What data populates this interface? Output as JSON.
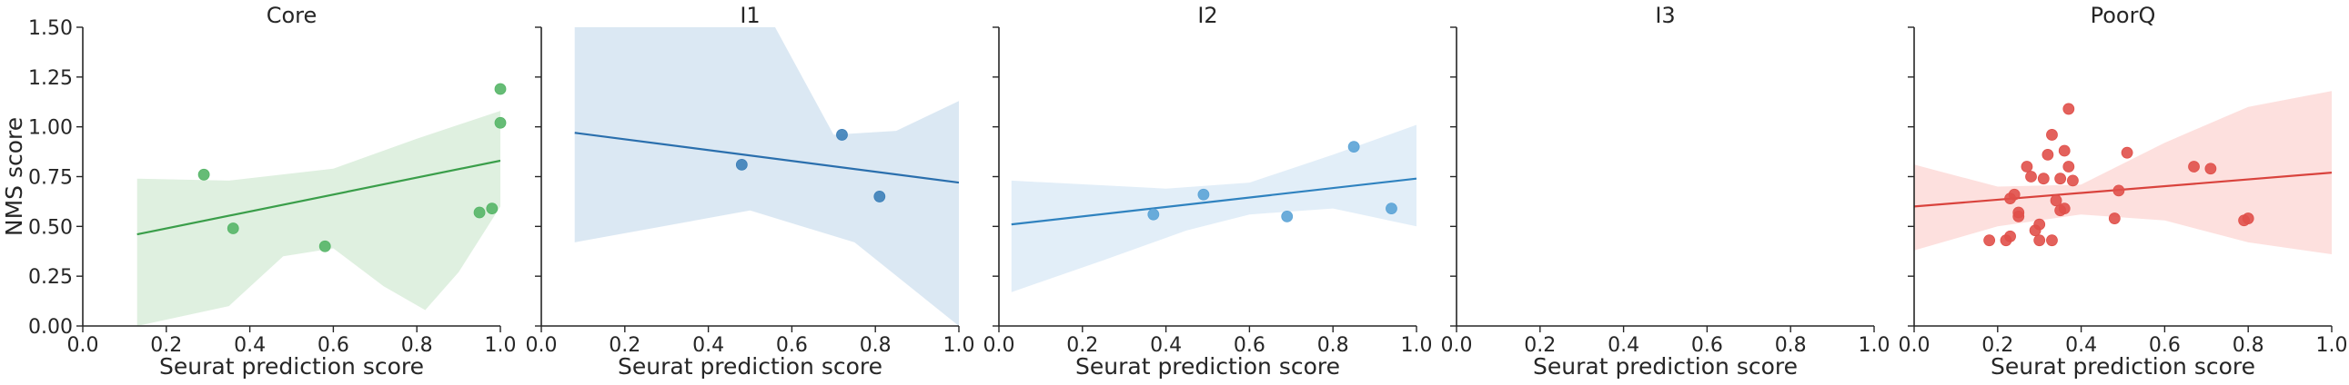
{
  "chart_data": [
    {
      "type": "scatter",
      "title": "Core",
      "xlabel": "Seurat prediction score",
      "ylabel": "NMS score",
      "xlim": [
        0.0,
        1.0
      ],
      "ylim": [
        0.0,
        1.5
      ],
      "xticks": [
        "0.0",
        "0.2",
        "0.4",
        "0.6",
        "0.8",
        "1.0"
      ],
      "yticks": [
        "0.00",
        "0.25",
        "0.50",
        "0.75",
        "1.00",
        "1.25",
        "1.50"
      ],
      "grid": false,
      "point_color": "#55b567",
      "line_color": "#3a9e4a",
      "band_color": "#dff0e0",
      "points": [
        [
          0.29,
          0.76
        ],
        [
          0.36,
          0.49
        ],
        [
          0.58,
          0.4
        ],
        [
          0.95,
          0.57
        ],
        [
          0.98,
          0.59
        ],
        [
          1.0,
          1.02
        ],
        [
          1.0,
          1.19
        ]
      ],
      "fit_line": [
        [
          0.13,
          0.46
        ],
        [
          1.0,
          0.83
        ]
      ],
      "ci_upper": [
        [
          0.13,
          0.74
        ],
        [
          0.35,
          0.73
        ],
        [
          0.6,
          0.79
        ],
        [
          0.8,
          0.94
        ],
        [
          1.0,
          1.08
        ]
      ],
      "ci_lower": [
        [
          0.13,
          0.0
        ],
        [
          0.35,
          0.1
        ],
        [
          0.48,
          0.35
        ],
        [
          0.6,
          0.39
        ],
        [
          0.72,
          0.2
        ],
        [
          0.82,
          0.08
        ],
        [
          0.9,
          0.27
        ],
        [
          1.0,
          0.6
        ]
      ]
    },
    {
      "type": "scatter",
      "title": "I1",
      "xlabel": "Seurat prediction score",
      "ylabel": "",
      "xlim": [
        0.0,
        1.0
      ],
      "ylim": [
        0.0,
        1.5
      ],
      "xticks": [
        "0.0",
        "0.2",
        "0.4",
        "0.6",
        "0.8",
        "1.0"
      ],
      "yticks": [],
      "grid": false,
      "point_color": "#3c7fb8",
      "line_color": "#2a6fad",
      "band_color": "#dbe8f3",
      "points": [
        [
          0.48,
          0.81
        ],
        [
          0.72,
          0.96
        ],
        [
          0.81,
          0.65
        ]
      ],
      "fit_line": [
        [
          0.08,
          0.97
        ],
        [
          1.0,
          0.72
        ]
      ],
      "ci_upper": [
        [
          0.08,
          1.5
        ],
        [
          0.56,
          1.5
        ],
        [
          0.7,
          0.96
        ],
        [
          0.85,
          0.98
        ],
        [
          1.0,
          1.13
        ]
      ],
      "ci_lower": [
        [
          0.08,
          0.42
        ],
        [
          0.5,
          0.58
        ],
        [
          0.75,
          0.42
        ],
        [
          1.0,
          0.0
        ]
      ]
    },
    {
      "type": "scatter",
      "title": "I2",
      "xlabel": "Seurat prediction score",
      "ylabel": "",
      "xlim": [
        0.0,
        1.0
      ],
      "ylim": [
        0.0,
        1.5
      ],
      "xticks": [
        "0.0",
        "0.2",
        "0.4",
        "0.6",
        "0.8",
        "1.0"
      ],
      "yticks": [],
      "grid": false,
      "point_color": "#5ba3d6",
      "line_color": "#2f82bf",
      "band_color": "#e2eef8",
      "points": [
        [
          0.37,
          0.56
        ],
        [
          0.49,
          0.66
        ],
        [
          0.69,
          0.55
        ],
        [
          0.85,
          0.9
        ],
        [
          0.94,
          0.59
        ]
      ],
      "fit_line": [
        [
          0.03,
          0.51
        ],
        [
          1.0,
          0.74
        ]
      ],
      "ci_upper": [
        [
          0.03,
          0.73
        ],
        [
          0.4,
          0.69
        ],
        [
          0.6,
          0.72
        ],
        [
          0.8,
          0.86
        ],
        [
          1.0,
          1.01
        ]
      ],
      "ci_lower": [
        [
          0.03,
          0.17
        ],
        [
          0.25,
          0.33
        ],
        [
          0.45,
          0.48
        ],
        [
          0.6,
          0.56
        ],
        [
          0.8,
          0.59
        ],
        [
          1.0,
          0.5
        ]
      ]
    },
    {
      "type": "scatter",
      "title": "I3",
      "xlabel": "Seurat prediction score",
      "ylabel": "",
      "xlim": [
        0.0,
        1.0
      ],
      "ylim": [
        0.0,
        1.5
      ],
      "xticks": [
        "0.0",
        "0.2",
        "0.4",
        "0.6",
        "0.8",
        "1.0"
      ],
      "yticks": [],
      "grid": false,
      "point_color": "#888888",
      "line_color": "#888888",
      "band_color": "#eeeeee",
      "points": [],
      "fit_line": [],
      "ci_upper": [],
      "ci_lower": []
    },
    {
      "type": "scatter",
      "title": "PoorQ",
      "xlabel": "Seurat prediction score",
      "ylabel": "",
      "xlim": [
        0.0,
        1.0
      ],
      "ylim": [
        0.0,
        1.5
      ],
      "xticks": [
        "0.0",
        "0.2",
        "0.4",
        "0.6",
        "0.8",
        "1.0"
      ],
      "yticks": [],
      "grid": false,
      "point_color": "#e0504a",
      "line_color": "#d9433d",
      "band_color": "#fde0de",
      "points": [
        [
          0.18,
          0.43
        ],
        [
          0.22,
          0.43
        ],
        [
          0.23,
          0.45
        ],
        [
          0.23,
          0.64
        ],
        [
          0.24,
          0.66
        ],
        [
          0.25,
          0.55
        ],
        [
          0.25,
          0.57
        ],
        [
          0.27,
          0.8
        ],
        [
          0.28,
          0.75
        ],
        [
          0.29,
          0.48
        ],
        [
          0.3,
          0.43
        ],
        [
          0.3,
          0.51
        ],
        [
          0.31,
          0.74
        ],
        [
          0.32,
          0.86
        ],
        [
          0.33,
          0.43
        ],
        [
          0.33,
          0.96
        ],
        [
          0.34,
          0.63
        ],
        [
          0.35,
          0.58
        ],
        [
          0.35,
          0.74
        ],
        [
          0.36,
          0.59
        ],
        [
          0.36,
          0.88
        ],
        [
          0.37,
          1.09
        ],
        [
          0.37,
          0.8
        ],
        [
          0.38,
          0.73
        ],
        [
          0.48,
          0.54
        ],
        [
          0.49,
          0.68
        ],
        [
          0.51,
          0.87
        ],
        [
          0.67,
          0.8
        ],
        [
          0.71,
          0.79
        ],
        [
          0.79,
          0.53
        ],
        [
          0.8,
          0.54
        ]
      ],
      "fit_line": [
        [
          0.0,
          0.6
        ],
        [
          1.0,
          0.77
        ]
      ],
      "ci_upper": [
        [
          0.0,
          0.81
        ],
        [
          0.2,
          0.7
        ],
        [
          0.4,
          0.71
        ],
        [
          0.6,
          0.92
        ],
        [
          0.8,
          1.1
        ],
        [
          1.0,
          1.18
        ]
      ],
      "ci_lower": [
        [
          0.0,
          0.38
        ],
        [
          0.2,
          0.5
        ],
        [
          0.4,
          0.56
        ],
        [
          0.6,
          0.53
        ],
        [
          0.8,
          0.42
        ],
        [
          1.0,
          0.36
        ]
      ]
    }
  ]
}
